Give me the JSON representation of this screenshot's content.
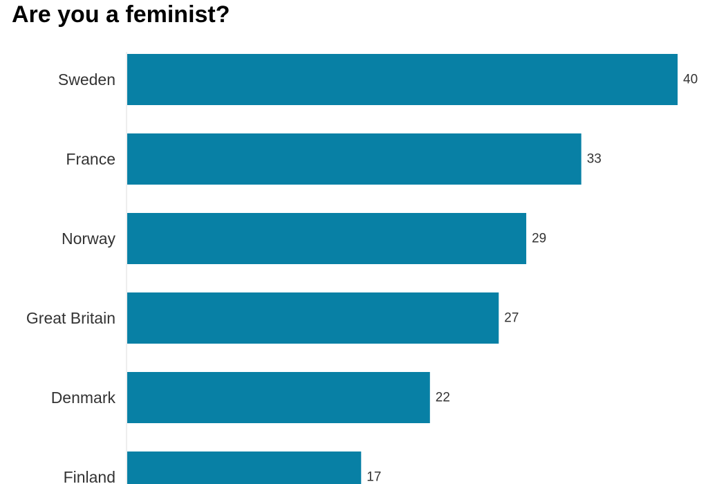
{
  "chart_data": {
    "type": "bar",
    "orientation": "horizontal",
    "title": "Are you a feminist?",
    "categories": [
      "Sweden",
      "France",
      "Norway",
      "Great Britain",
      "Denmark",
      "Finland"
    ],
    "values": [
      40,
      33,
      29,
      27,
      22,
      17
    ],
    "xlim": [
      0,
      42
    ],
    "grid": false,
    "data_labels": true,
    "bar_color": "#0880a5"
  }
}
